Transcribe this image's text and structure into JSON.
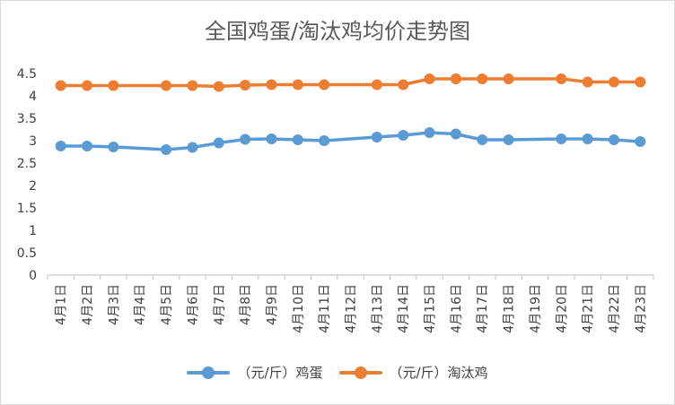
{
  "chart_data": {
    "type": "line",
    "title": "全国鸡蛋/淘汰鸡均价走势图",
    "xlabel": "",
    "ylabel": "",
    "ylim": [
      0,
      4.5
    ],
    "yticks": [
      "0",
      "0.5",
      "1",
      "1.5",
      "2",
      "2.5",
      "3",
      "3.5",
      "4",
      "4.5"
    ],
    "grid": false,
    "legend_position": "bottom",
    "categories": [
      "4月1日",
      "4月2日",
      "4月3日",
      "4月4日",
      "4月5日",
      "4月6日",
      "4月7日",
      "4月8日",
      "4月9日",
      "4月10日",
      "4月11日",
      "4月12日",
      "4月13日",
      "4月14日",
      "4月15日",
      "4月16日",
      "4月17日",
      "4月18日",
      "4月19日",
      "4月20日",
      "4月21日",
      "4月22日",
      "4月23日"
    ],
    "series": [
      {
        "name": "（元/斤）鸡蛋",
        "color": "#5b9bd5",
        "values": [
          2.88,
          2.88,
          2.86,
          null,
          2.8,
          2.85,
          2.95,
          3.03,
          3.04,
          3.02,
          3.0,
          null,
          3.08,
          3.12,
          3.18,
          3.15,
          3.02,
          3.02,
          null,
          3.04,
          3.04,
          3.02,
          2.98
        ]
      },
      {
        "name": "（元/斤）淘汰鸡",
        "color": "#ed7d31",
        "values": [
          4.23,
          4.23,
          4.23,
          null,
          4.23,
          4.23,
          4.21,
          4.24,
          4.25,
          4.25,
          4.25,
          null,
          4.25,
          4.25,
          4.38,
          4.38,
          4.38,
          4.38,
          null,
          4.38,
          4.31,
          4.31,
          4.31
        ]
      }
    ]
  }
}
